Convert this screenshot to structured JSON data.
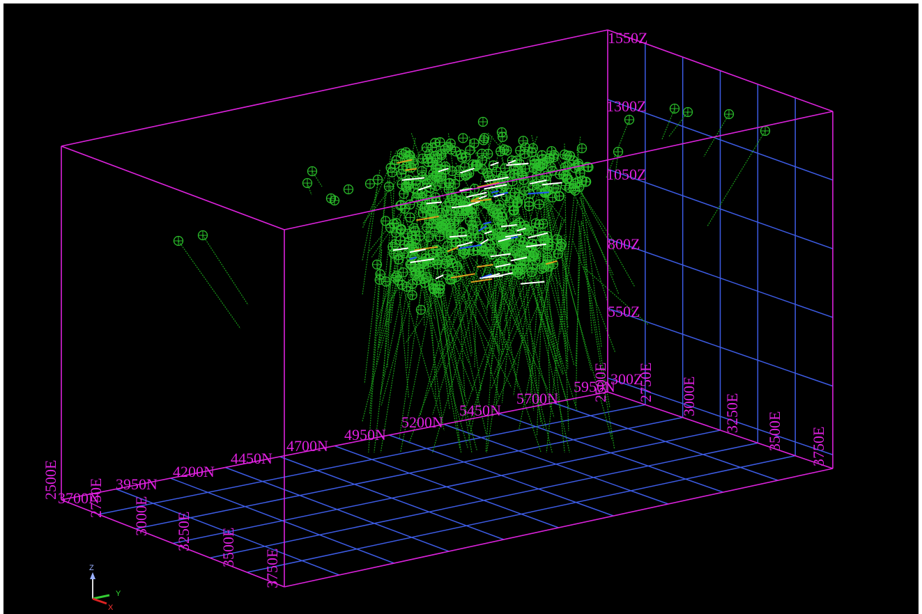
{
  "colors": {
    "background": "#000000",
    "box": "#dd22dd",
    "grid": "#3d5ce6",
    "labels": "#e020e0",
    "drillholes": "#1a9e1a",
    "collars": "#2bbf2b",
    "highlight_white": "#ffffff",
    "highlight_orange": "#e0a020",
    "highlight_blue": "#2050ff"
  },
  "labels": {
    "z": [
      "1550Z",
      "1300Z",
      "1050Z",
      "800Z",
      "550Z",
      "300Z"
    ],
    "n": [
      "3700N",
      "3950N",
      "4200N",
      "4450N",
      "4700N",
      "4950N",
      "5200N",
      "5450N",
      "5700N",
      "5950N"
    ],
    "e_left": [
      "2500E",
      "2750E",
      "3000E",
      "3250E",
      "3500E",
      "3750E"
    ],
    "e_right": [
      "2500E",
      "2750E",
      "3000E",
      "3250E",
      "3500E",
      "3750E"
    ]
  },
  "axes": {
    "x": "X",
    "y": "Y",
    "z": "Z"
  }
}
